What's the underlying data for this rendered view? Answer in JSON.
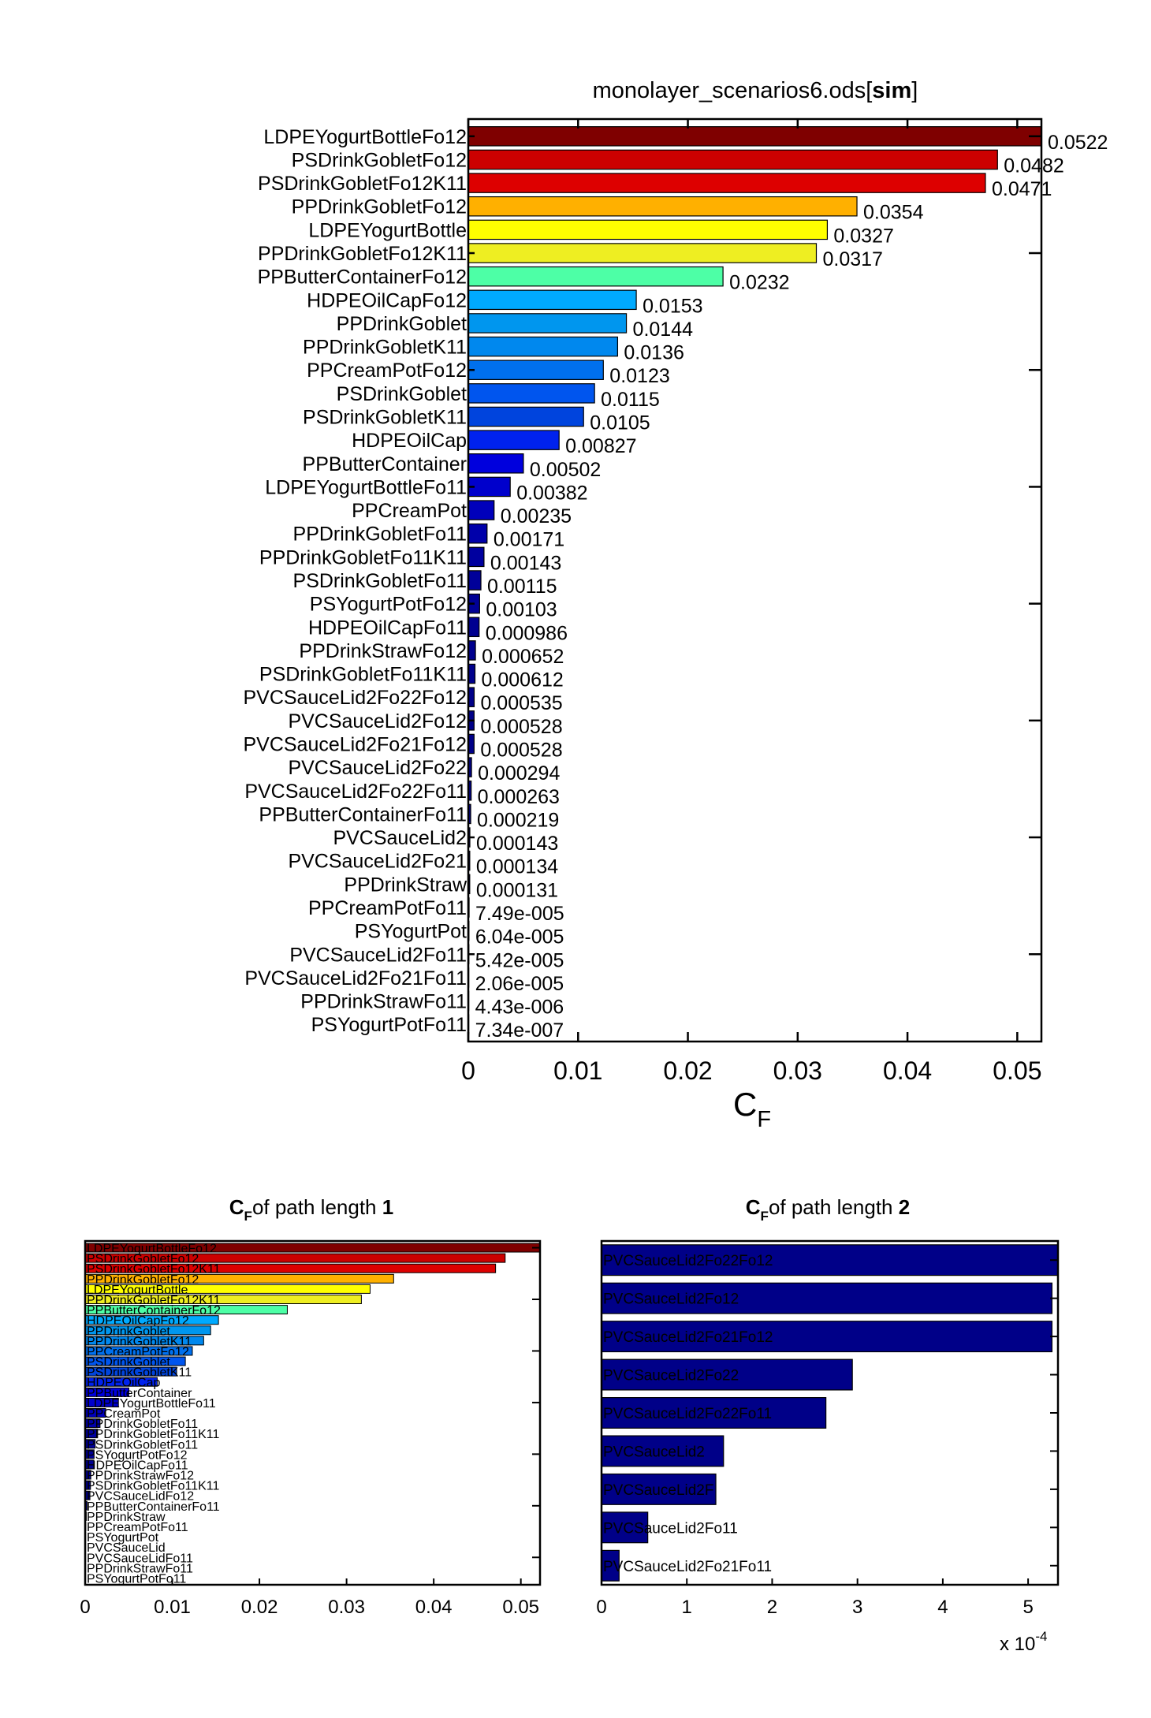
{
  "chart_data": [
    {
      "type": "bar",
      "orientation": "horizontal",
      "title": "monolayer_scenarios6.ods[sim]",
      "title_plain": "monolayer_scenarios6.ods[",
      "title_bold": "sim",
      "title_end": "]",
      "xlabel_main": "C",
      "xlabel_sub": "F",
      "xlim": [
        0,
        0.0522
      ],
      "xticks": [
        0,
        0.01,
        0.02,
        0.03,
        0.04,
        0.05
      ],
      "xtick_labels": [
        "0",
        "0.01",
        "0.02",
        "0.03",
        "0.04",
        "0.05"
      ],
      "categories": [
        "LDPEYogurtBottleFo12",
        "PSDrinkGobletFo12",
        "PSDrinkGobletFo12K11",
        "PPDrinkGobletFo12",
        "LDPEYogurtBottle",
        "PPDrinkGobletFo12K11",
        "PPButterContainerFo12",
        "HDPEOilCapFo12",
        "PPDrinkGoblet",
        "PPDrinkGobletK11",
        "PPCreamPotFo12",
        "PSDrinkGoblet",
        "PSDrinkGobletK11",
        "HDPEOilCap",
        "PPButterContainer",
        "LDPEYogurtBottleFo11",
        "PPCreamPot",
        "PPDrinkGobletFo11",
        "PPDrinkGobletFo11K11",
        "PSDrinkGobletFo11",
        "PSYogurtPotFo12",
        "HDPEOilCapFo11",
        "PPDrinkStrawFo12",
        "PSDrinkGobletFo11K11",
        "PVCSauceLid2Fo22Fo12",
        "PVCSauceLid2Fo12",
        "PVCSauceLid2Fo21Fo12",
        "PVCSauceLid2Fo22",
        "PVCSauceLid2Fo22Fo11",
        "PPButterContainerFo11",
        "PVCSauceLid2",
        "PVCSauceLid2Fo21",
        "PPDrinkStraw",
        "PPCreamPotFo11",
        "PSYogurtPot",
        "PVCSauceLid2Fo11",
        "PVCSauceLid2Fo21Fo11",
        "PPDrinkStrawFo11",
        "PSYogurtPotFo11"
      ],
      "values": [
        0.0522,
        0.0482,
        0.0471,
        0.0354,
        0.0327,
        0.0317,
        0.0232,
        0.0153,
        0.0144,
        0.0136,
        0.0123,
        0.0115,
        0.0105,
        0.00827,
        0.00502,
        0.00382,
        0.00235,
        0.00171,
        0.00143,
        0.00115,
        0.00103,
        0.000986,
        0.000652,
        0.000612,
        0.000535,
        0.000528,
        0.000528,
        0.000294,
        0.000263,
        0.000219,
        0.000143,
        0.000134,
        0.000131,
        7.49e-05,
        6.04e-05,
        5.42e-05,
        2.06e-05,
        4.43e-06,
        7.34e-07
      ],
      "value_labels": [
        "0.0522",
        "0.0482",
        "0.0471",
        "0.0354",
        "0.0327",
        "0.0317",
        "0.0232",
        "0.0153",
        "0.0144",
        "0.0136",
        "0.0123",
        "0.0115",
        "0.0105",
        "0.00827",
        "0.00502",
        "0.00382",
        "0.00235",
        "0.00171",
        "0.00143",
        "0.00115",
        "0.00103",
        "0.000986",
        "0.000652",
        "0.000612",
        "0.000535",
        "0.000528",
        "0.000528",
        "0.000294",
        "0.000263",
        "0.000219",
        "0.000143",
        "0.000134",
        "0.000131",
        "7.49e-005",
        "6.04e-005",
        "5.42e-005",
        "2.06e-005",
        "4.43e-006",
        "7.34e-007"
      ],
      "colors": [
        "#7f0000",
        "#cc0000",
        "#dd0000",
        "#ffb000",
        "#ffff00",
        "#eeee22",
        "#4dffa6",
        "#00aaff",
        "#0096ee",
        "#0088ee",
        "#0070ee",
        "#0055ee",
        "#0044dd",
        "#0022ee",
        "#0000dd",
        "#0000cc",
        "#0000bb",
        "#0000aa",
        "#00009f",
        "#000099",
        "#000095",
        "#000090",
        "#00008f",
        "#00008c",
        "#000089",
        "#000088",
        "#000088",
        "#000086",
        "#000086",
        "#000085",
        "#000085",
        "#000085",
        "#000085",
        "#000084",
        "#000084",
        "#000084",
        "#000084",
        "#000083",
        "#000083"
      ]
    },
    {
      "type": "bar",
      "orientation": "horizontal",
      "title_plain": "of path length ",
      "title_c": "C",
      "title_sub": "F",
      "title_bold": "1",
      "xlim": [
        0,
        0.0522
      ],
      "xticks": [
        0,
        0.01,
        0.02,
        0.03,
        0.04,
        0.05
      ],
      "xtick_labels": [
        "0",
        "0.01",
        "0.02",
        "0.03",
        "0.04",
        "0.05"
      ],
      "categories": [
        "LDPEYogurtBottleFo12",
        "PSDrinkGobletFo12",
        "PSDrinkGobletFo12K11",
        "PPDrinkGobletFo12",
        "LDPEYogurtBottle",
        "PPDrinkGobletFo12K11",
        "PPButterContainerFo12",
        "HDPEOilCapFo12",
        "PPDrinkGoblet",
        "PPDrinkGobletK11",
        "PPCreamPotFo12",
        "PSDrinkGoblet",
        "PSDrinkGobletK11",
        "HDPEOilCap",
        "PPButterContainer",
        "LDPEYogurtBottleFo11",
        "PPCreamPot",
        "PPDrinkGobletFo11",
        "PPDrinkGobletFo11K11",
        "PSDrinkGobletFo11",
        "PSYogurtPotFo12",
        "HDPEOilCapFo11",
        "PPDrinkStrawFo12",
        "PSDrinkGobletFo11K11",
        "PVCSauceLidFo12",
        "PPButterContainerFo11",
        "PPDrinkStraw",
        "PPCreamPotFo11",
        "PSYogurtPot",
        "PVCSauceLid",
        "PVCSauceLidFo11",
        "PPDrinkStrawFo11",
        "PSYogurtPotFo11"
      ],
      "values": [
        0.0522,
        0.0482,
        0.0471,
        0.0354,
        0.0327,
        0.0317,
        0.0232,
        0.0153,
        0.0144,
        0.0136,
        0.0123,
        0.0115,
        0.0105,
        0.00827,
        0.00502,
        0.00382,
        0.00235,
        0.00171,
        0.00143,
        0.00115,
        0.00103,
        0.000986,
        0.000652,
        0.000612,
        0.00055,
        0.000219,
        0.000131,
        7.49e-05,
        6.04e-05,
        3e-05,
        2e-05,
        4.43e-06,
        7.34e-07
      ],
      "colors": [
        "#7f0000",
        "#cc0000",
        "#dd0000",
        "#ffb000",
        "#ffff00",
        "#eeee22",
        "#4dffa6",
        "#00aaff",
        "#0096ee",
        "#0088ee",
        "#0070ee",
        "#0055ee",
        "#0044dd",
        "#0022ee",
        "#0000dd",
        "#0000cc",
        "#0000bb",
        "#0000aa",
        "#00009f",
        "#000099",
        "#000095",
        "#000090",
        "#00008f",
        "#00008c",
        "#000089",
        "#000085",
        "#000085",
        "#000084",
        "#000084",
        "#000084",
        "#000084",
        "#000083",
        "#000083"
      ]
    },
    {
      "type": "bar",
      "orientation": "horizontal",
      "title_plain": "of path length ",
      "title_c": "C",
      "title_sub": "F",
      "title_bold": "2",
      "xlim": [
        0,
        5.35
      ],
      "xticks": [
        0,
        1,
        2,
        3,
        4,
        5
      ],
      "xtick_labels": [
        "0",
        "1",
        "2",
        "3",
        "4",
        "5"
      ],
      "scale_label": "x 10",
      "scale_exp": "-4",
      "categories": [
        "PVCSauceLid2Fo22Fo12",
        "PVCSauceLid2Fo12",
        "PVCSauceLid2Fo21Fo12",
        "PVCSauceLid2Fo22",
        "PVCSauceLid2Fo22Fo11",
        "PVCSauceLid2",
        "PVCSauceLid2F",
        "PVCSauceLid2Fo11",
        "PVCSauceLid2Fo21Fo11"
      ],
      "values": [
        5.35,
        5.28,
        5.28,
        2.94,
        2.63,
        1.43,
        1.34,
        0.542,
        0.206
      ],
      "color": "#000088"
    }
  ]
}
